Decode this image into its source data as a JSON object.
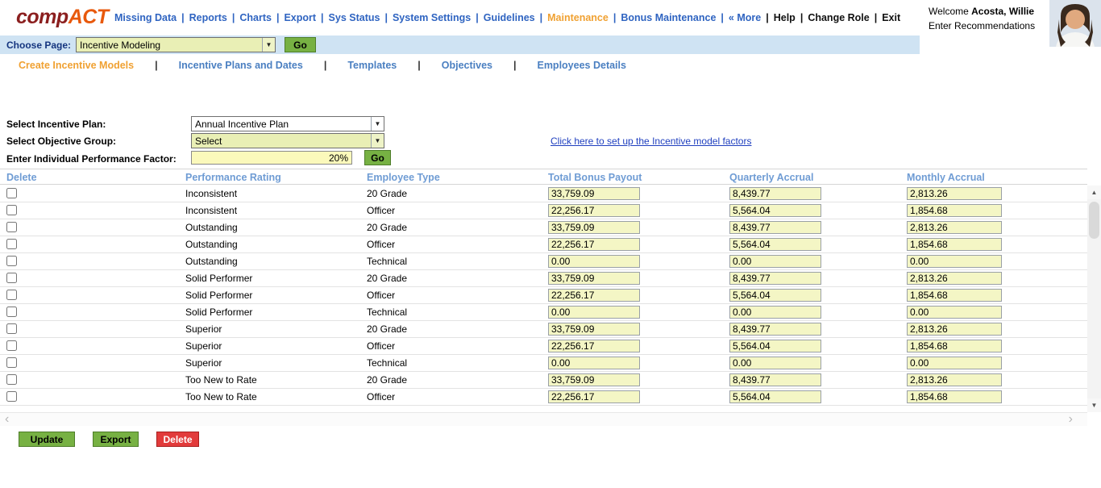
{
  "colors": {
    "nav_blue": "#2f64c1",
    "accent_orange": "#f0a132",
    "logo_maroon": "#8b1f1f",
    "logo_orange": "#e8590c",
    "page_bar_blue": "#cfe3f3",
    "field_yellow_green": "#e9efb5",
    "table_field_yellow": "#f4f6c5",
    "factor_field_yellow": "#fbf9bb",
    "button_green": "#77b143",
    "button_red": "#e23b3b",
    "table_header_blue": "#6f9cd4",
    "link_blue": "#1f3fbf"
  },
  "header": {
    "logo_part1": "comp",
    "logo_part2": "ACT",
    "nav": [
      {
        "label": "Missing Data",
        "color": "blue",
        "sep": "blue"
      },
      {
        "label": "Reports",
        "color": "blue",
        "sep": "blue"
      },
      {
        "label": "Charts",
        "color": "blue",
        "sep": "blue"
      },
      {
        "label": "Export",
        "color": "blue",
        "sep": "blue"
      },
      {
        "label": "Sys Status",
        "color": "blue",
        "sep": "blue"
      },
      {
        "label": "System Settings",
        "color": "blue",
        "sep": "blue"
      },
      {
        "label": "Guidelines",
        "color": "blue",
        "sep": "blue"
      },
      {
        "label": "Maintenance",
        "color": "orange",
        "sep": "blue"
      },
      {
        "label": "Bonus Maintenance",
        "color": "blue",
        "sep": "blue"
      },
      {
        "label": "« More",
        "color": "blue",
        "sep": "black"
      },
      {
        "label": "Help",
        "color": "black",
        "sep": "black"
      },
      {
        "label": "Change Role",
        "color": "black",
        "sep": "black"
      },
      {
        "label": "Exit",
        "color": "black",
        "sep": "none"
      }
    ],
    "welcome_prefix": "Welcome",
    "welcome_name": "Acosta, Willie",
    "welcome_sub": "Enter Recommendations"
  },
  "page_bar": {
    "label": "Choose Page:",
    "selected_page": "Incentive Modeling",
    "go_label": "Go"
  },
  "tabs": [
    {
      "label": "Create Incentive Models",
      "active": true
    },
    {
      "label": "Incentive Plans and Dates",
      "active": false
    },
    {
      "label": "Templates",
      "active": false
    },
    {
      "label": "Objectives",
      "active": false
    },
    {
      "label": "Employees Details",
      "active": false
    }
  ],
  "form": {
    "incentive_plan_label": "Select Incentive Plan:",
    "incentive_plan_value": "Annual Incentive Plan",
    "objective_group_label": "Select Objective Group:",
    "objective_group_value": "Select",
    "factor_label": "Enter Individual Performance Factor:",
    "factor_value": "20%",
    "go_label": "Go",
    "setup_link_text": "Click here to set up the Incentive model factors"
  },
  "table": {
    "columns": [
      "Delete",
      "Performance Rating",
      "Employee Type",
      "Total Bonus Payout",
      "Quarterly Accrual",
      "Monthly Accrual"
    ],
    "rows": [
      {
        "rating": "Inconsistent",
        "type": "20 Grade",
        "total": "33,759.09",
        "quarterly": "8,439.77",
        "monthly": "2,813.26"
      },
      {
        "rating": "Inconsistent",
        "type": "Officer",
        "total": "22,256.17",
        "quarterly": "5,564.04",
        "monthly": "1,854.68"
      },
      {
        "rating": "Outstanding",
        "type": "20 Grade",
        "total": "33,759.09",
        "quarterly": "8,439.77",
        "monthly": "2,813.26"
      },
      {
        "rating": "Outstanding",
        "type": "Officer",
        "total": "22,256.17",
        "quarterly": "5,564.04",
        "monthly": "1,854.68"
      },
      {
        "rating": "Outstanding",
        "type": "Technical",
        "total": "0.00",
        "quarterly": "0.00",
        "monthly": "0.00"
      },
      {
        "rating": "Solid Performer",
        "type": "20 Grade",
        "total": "33,759.09",
        "quarterly": "8,439.77",
        "monthly": "2,813.26"
      },
      {
        "rating": "Solid Performer",
        "type": "Officer",
        "total": "22,256.17",
        "quarterly": "5,564.04",
        "monthly": "1,854.68"
      },
      {
        "rating": "Solid Performer",
        "type": "Technical",
        "total": "0.00",
        "quarterly": "0.00",
        "monthly": "0.00"
      },
      {
        "rating": "Superior",
        "type": "20 Grade",
        "total": "33,759.09",
        "quarterly": "8,439.77",
        "monthly": "2,813.26"
      },
      {
        "rating": "Superior",
        "type": "Officer",
        "total": "22,256.17",
        "quarterly": "5,564.04",
        "monthly": "1,854.68"
      },
      {
        "rating": "Superior",
        "type": "Technical",
        "total": "0.00",
        "quarterly": "0.00",
        "monthly": "0.00"
      },
      {
        "rating": "Too New to Rate",
        "type": "20 Grade",
        "total": "33,759.09",
        "quarterly": "8,439.77",
        "monthly": "2,813.26"
      },
      {
        "rating": "Too New to Rate",
        "type": "Officer",
        "total": "22,256.17",
        "quarterly": "5,564.04",
        "monthly": "1,854.68"
      }
    ]
  },
  "footer": {
    "update_label": "Update",
    "export_label": "Export",
    "delete_label": "Delete"
  }
}
